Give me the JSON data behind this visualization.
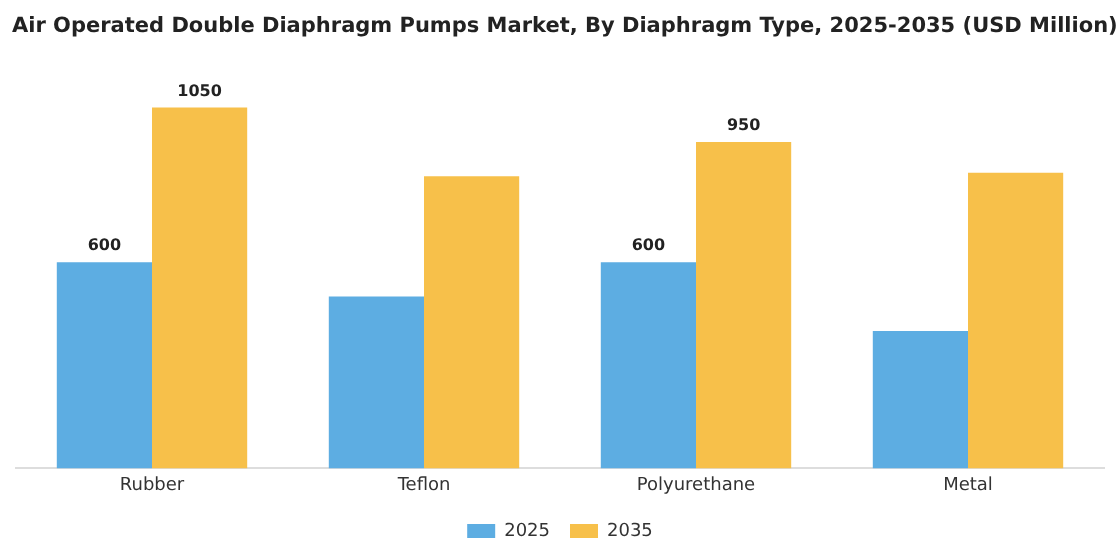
{
  "chart_data": {
    "type": "bar",
    "title": "Air Operated Double Diaphragm Pumps Market, By Diaphragm Type, 2025-2035 (USD Million)",
    "categories": [
      "Rubber",
      "Teflon",
      "Polyurethane",
      "Metal"
    ],
    "series": [
      {
        "name": "2025",
        "color": "#5dade2",
        "values": [
          600,
          500,
          600,
          400
        ],
        "value_labels": [
          "600",
          null,
          "600",
          null
        ]
      },
      {
        "name": "2035",
        "color": "#f7c04a",
        "values": [
          1050,
          850,
          950,
          860
        ],
        "value_labels": [
          "1050",
          null,
          "950",
          null
        ]
      }
    ],
    "legend": "bottom",
    "grid": false
  }
}
